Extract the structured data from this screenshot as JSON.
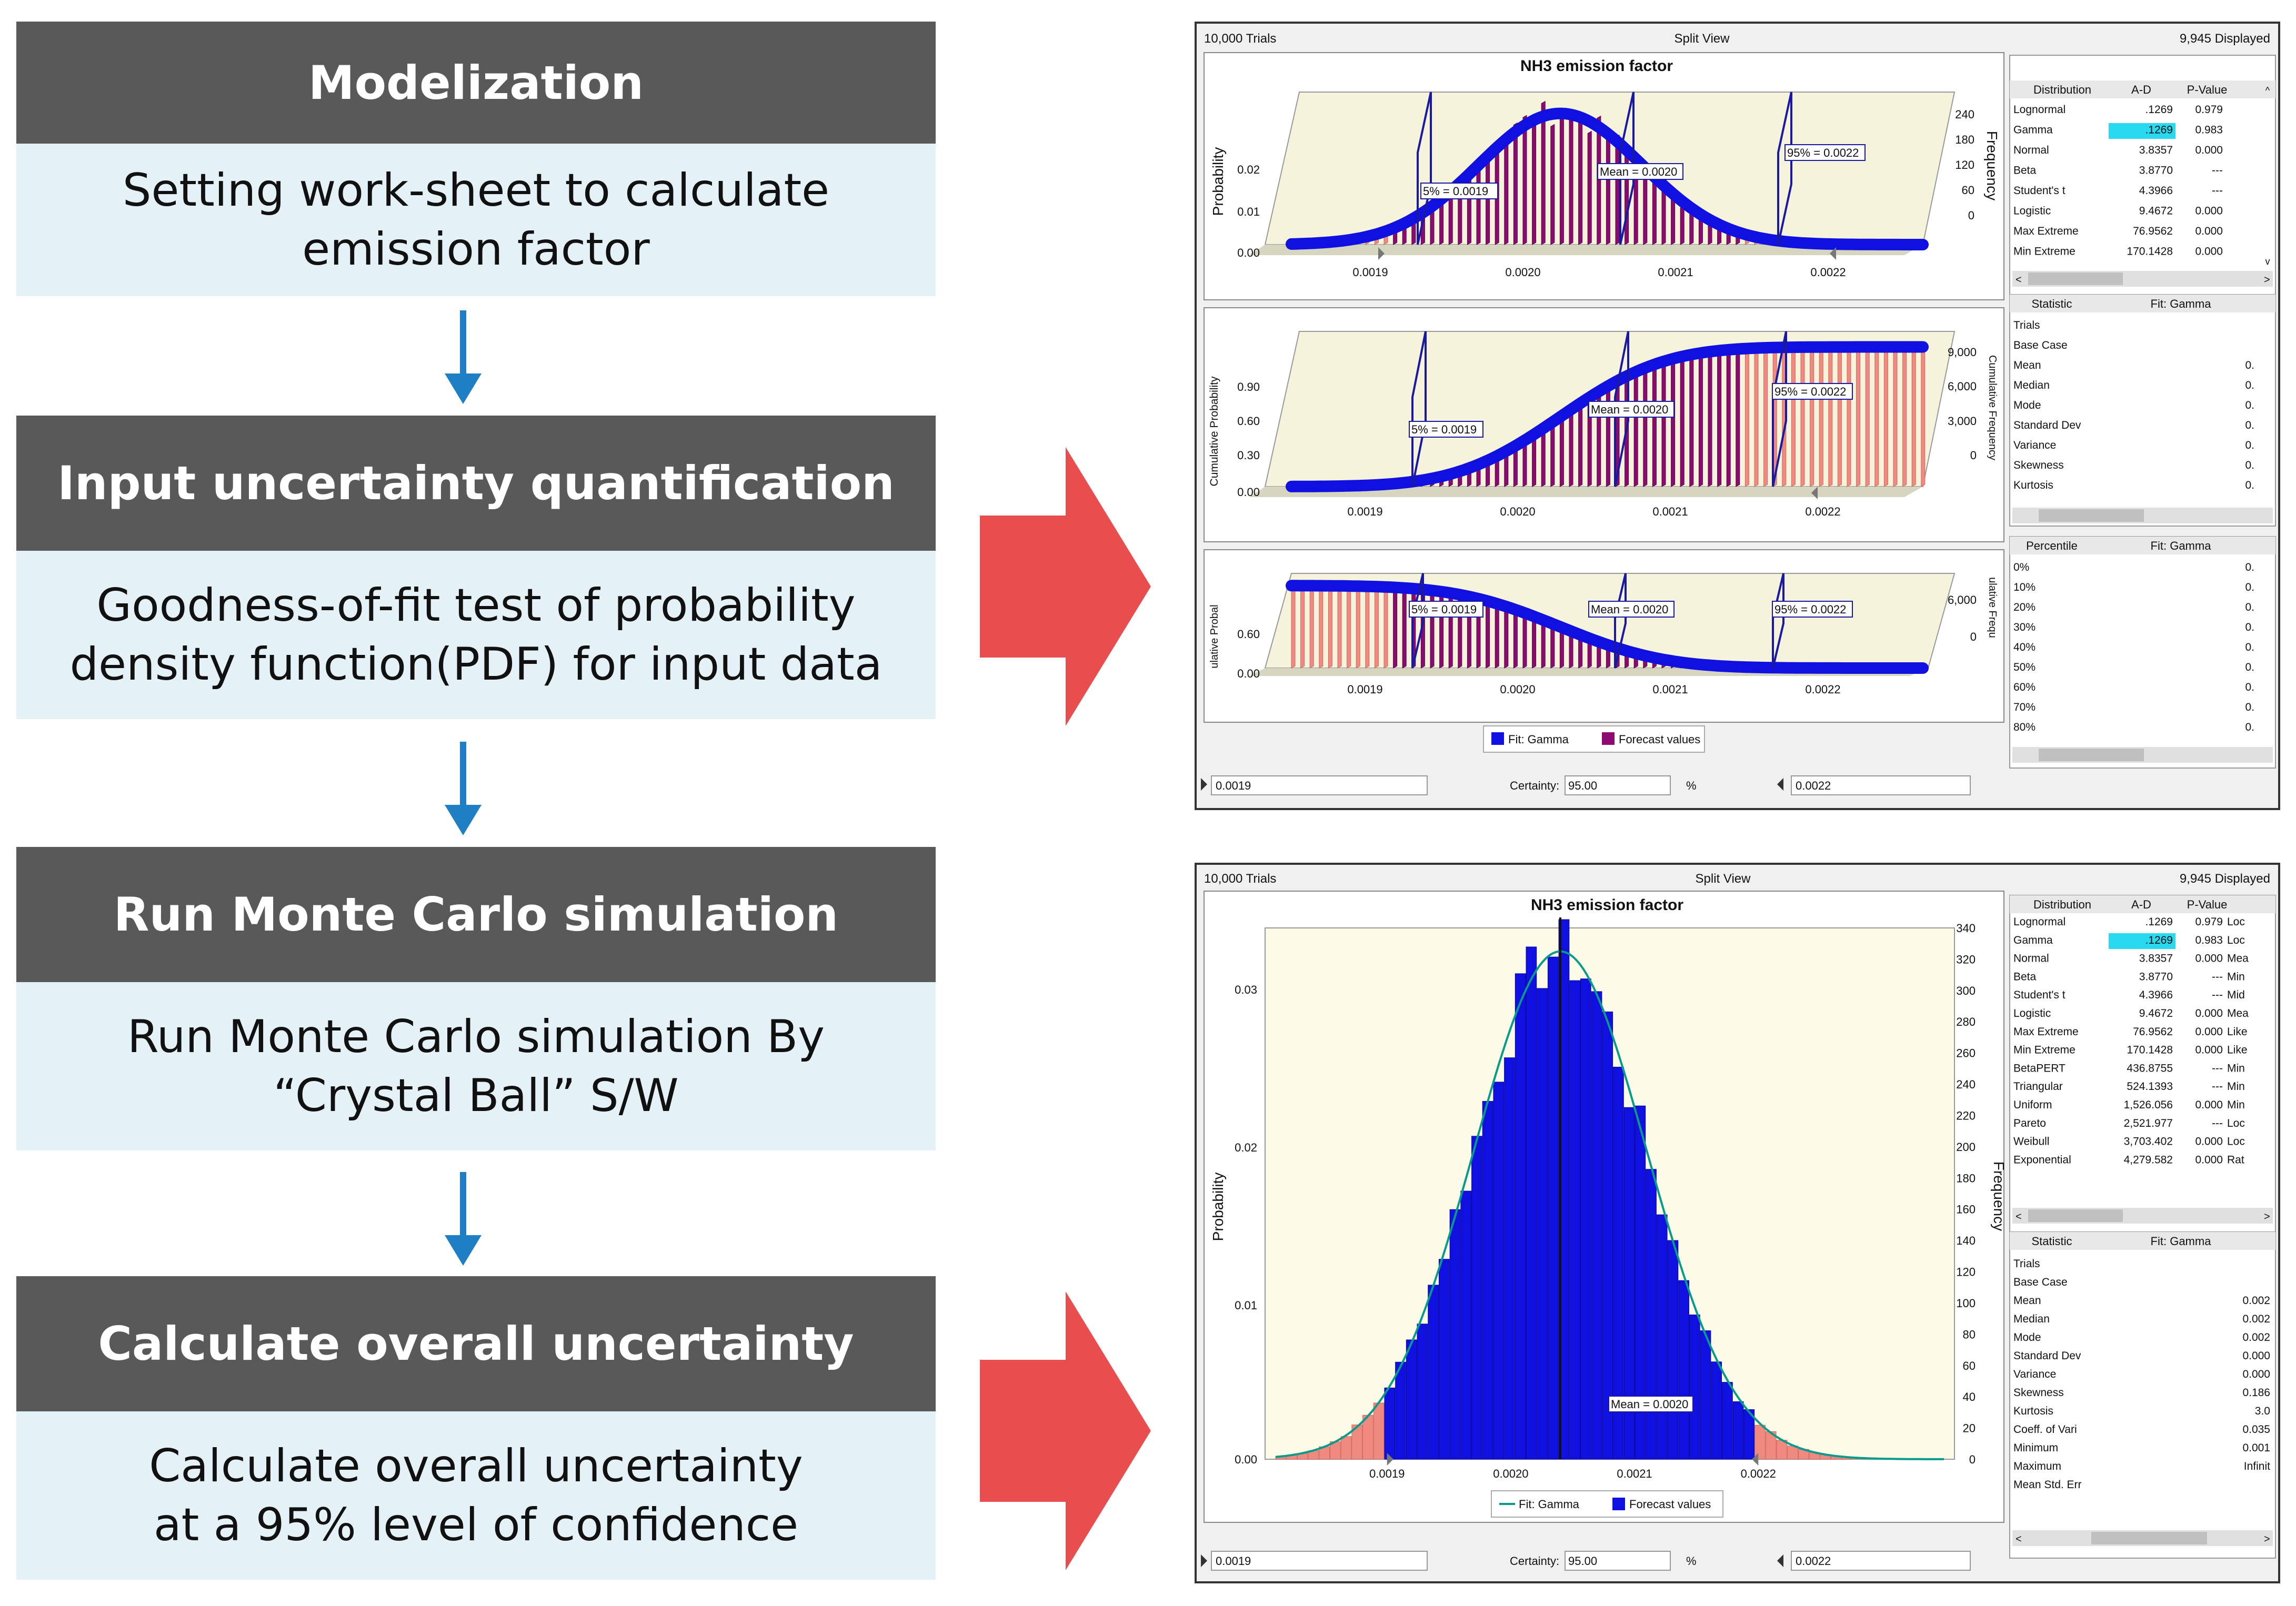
{
  "steps": [
    {
      "title": "Modelization",
      "desc_lines": [
        "Setting work-sheet to calculate",
        "emission factor"
      ]
    },
    {
      "title": "Input uncertainty quantification",
      "desc_lines": [
        "Goodness-of-fit test of probability",
        "density function(PDF) for input data"
      ]
    },
    {
      "title": "Run Monte Carlo simulation",
      "desc_lines": [
        "Run Monte Carlo simulation By",
        "“Crystal Ball” S/W"
      ]
    },
    {
      "title": "Calculate overall uncertainty",
      "desc_lines": [
        "Calculate overall uncertainty",
        "at a 95% level of confidence"
      ]
    }
  ],
  "colors": {
    "step_header": "#595959",
    "step_body": "#e4f1f6",
    "flow_arrow": "#1f7fc4",
    "big_arrow": "#e84e4e"
  },
  "windows": {
    "split_view": {
      "trials": "10,000 Trials",
      "view": "Split View",
      "displayed": "9,945 Displayed",
      "chart_title": "NH3 emission factor",
      "chart1": {
        "y_label": "Probability",
        "y_ticks": [
          "0.02",
          "0.01",
          "0.00"
        ],
        "right_label": "Frequency",
        "right_ticks": [
          "240",
          "180",
          "120",
          "60",
          "0"
        ],
        "x_ticks": [
          "0.0019",
          "0.0020",
          "0.0021",
          "0.0022"
        ],
        "markers": [
          "5% = 0.0019",
          "Mean = 0.0020",
          "95% = 0.0022"
        ]
      },
      "chart2": {
        "y_label": "Cumulative Probability",
        "y_ticks": [
          "0.90",
          "0.60",
          "0.30",
          "0.00"
        ],
        "right_label": "Cumulative Frequency",
        "right_ticks": [
          "9,000",
          "6,000",
          "3,000",
          "0"
        ],
        "x_ticks": [
          "0.0019",
          "0.0020",
          "0.0021",
          "0.0022"
        ],
        "markers": [
          "5% = 0.0019",
          "Mean = 0.0020",
          "95% = 0.0022"
        ]
      },
      "chart3": {
        "y_label": "ulative Probal",
        "y_ticks": [
          "0.60",
          "0.00"
        ],
        "right_label": "ulative Frequ",
        "right_ticks": [
          "6,000",
          "0"
        ],
        "x_ticks": [
          "0.0019",
          "0.0020",
          "0.0021",
          "0.0022"
        ],
        "markers": [
          "5% = 0.0019",
          "Mean = 0.0020",
          "95% = 0.0022"
        ]
      },
      "legend": [
        "Fit: Gamma",
        "Forecast values"
      ],
      "dist_table": {
        "headers": [
          "Distribution",
          "A-D",
          "P-Value"
        ],
        "rows": [
          [
            "Lognormal",
            ".1269",
            "0.979"
          ],
          [
            "Gamma",
            ".1269",
            "0.983"
          ],
          [
            "Normal",
            "3.8357",
            "0.000"
          ],
          [
            "Beta",
            "3.8770",
            "---"
          ],
          [
            "Student's t",
            "4.3966",
            "---"
          ],
          [
            "Logistic",
            "9.4672",
            "0.000"
          ],
          [
            "Max Extreme",
            "76.9562",
            "0.000"
          ],
          [
            "Min Extreme",
            "170.1428",
            "0.000"
          ]
        ]
      },
      "stat_table": {
        "headers": [
          "Statistic",
          "Fit: Gamma"
        ],
        "rows": [
          "Trials",
          "Base Case",
          "Mean",
          "Median",
          "Mode",
          "Standard Dev",
          "Variance",
          "Skewness",
          "Kurtosis"
        ],
        "cut": [
          "0.",
          "0.",
          "0.",
          "0.",
          "0.",
          "0.",
          "0."
        ]
      },
      "pct_table": {
        "headers": [
          "Percentile",
          "Fit: Gamma"
        ],
        "rows": [
          "0%",
          "10%",
          "20%",
          "30%",
          "40%",
          "50%",
          "60%",
          "70%",
          "80%"
        ]
      },
      "bottom": {
        "left": "0.0019",
        "certainty_label": "Certainty:",
        "certainty": "95.00",
        "pct": "%",
        "right": "0.0022"
      }
    },
    "freq_view": {
      "trials": "10,000 Trials",
      "view": "Split View",
      "displayed": "9,945 Displayed",
      "chart_title": "NH3 emission factor",
      "y_label": "Probability",
      "y_ticks": [
        "0.03",
        "0.02",
        "0.01",
        "0.00"
      ],
      "right_label": "Frequency",
      "right_ticks": [
        "340",
        "320",
        "300",
        "280",
        "260",
        "240",
        "220",
        "200",
        "180",
        "160",
        "140",
        "120",
        "100",
        "80",
        "60",
        "40",
        "20",
        "0"
      ],
      "x_ticks": [
        "0.0019",
        "0.0020",
        "0.0021",
        "0.0022"
      ],
      "mean_label": "Mean = 0.0020",
      "legend": [
        "Fit: Gamma",
        "Forecast values"
      ],
      "dist_table": {
        "headers": [
          "Distribution",
          "A-D",
          "P-Value"
        ],
        "rows": [
          [
            "Lognormal",
            ".1269",
            "0.979",
            "Loc"
          ],
          [
            "Gamma",
            ".1269",
            "0.983",
            "Loc"
          ],
          [
            "Normal",
            "3.8357",
            "0.000",
            "Mea"
          ],
          [
            "Beta",
            "3.8770",
            "---",
            "Min"
          ],
          [
            "Student's t",
            "4.3966",
            "---",
            "Mid"
          ],
          [
            "Logistic",
            "9.4672",
            "0.000",
            "Mea"
          ],
          [
            "Max Extreme",
            "76.9562",
            "0.000",
            "Like"
          ],
          [
            "Min Extreme",
            "170.1428",
            "0.000",
            "Like"
          ],
          [
            "BetaPERT",
            "436.8755",
            "---",
            "Min"
          ],
          [
            "Triangular",
            "524.1393",
            "---",
            "Min"
          ],
          [
            "Uniform",
            "1,526.056",
            "0.000",
            "Min"
          ],
          [
            "Pareto",
            "2,521.977",
            "---",
            "Loc"
          ],
          [
            "Weibull",
            "3,703.402",
            "0.000",
            "Loc"
          ],
          [
            "Exponential",
            "4,279.582",
            "0.000",
            "Rat"
          ]
        ]
      },
      "stat_table": {
        "headers": [
          "Statistic",
          "Fit: Gamma"
        ],
        "rows": [
          [
            "Trials",
            ""
          ],
          [
            "Base Case",
            ""
          ],
          [
            "Mean",
            "0.002"
          ],
          [
            "Median",
            "0.002"
          ],
          [
            "Mode",
            "0.002"
          ],
          [
            "Standard Dev",
            "0.000"
          ],
          [
            "Variance",
            "0.000"
          ],
          [
            "Skewness",
            "0.186"
          ],
          [
            "Kurtosis",
            "3.0"
          ],
          [
            "Coeff. of Vari",
            "0.035"
          ],
          [
            "Minimum",
            "0.001"
          ],
          [
            "Maximum",
            "Infinit"
          ],
          [
            "Mean Std. Err",
            ""
          ]
        ]
      },
      "bottom": {
        "left": "0.0019",
        "certainty_label": "Certainty:",
        "certainty": "95.00",
        "pct": "%",
        "right": "0.0022"
      }
    }
  },
  "chart_data": {
    "type": "bar",
    "title": "NH3 emission factor",
    "xlabel": "",
    "ylabel": "Probability",
    "y2label": "Frequency",
    "x_ticks": [
      0.0019,
      0.002,
      0.0021,
      0.0022
    ],
    "xlim": [
      0.00181,
      0.00235
    ],
    "ylim": [
      0,
      340
    ],
    "certainty_range": [
      0.0019,
      0.0022
    ],
    "certainty": 95.0,
    "mean": 0.00204,
    "fit": "Gamma",
    "legend": [
      "Fit: Gamma",
      "Forecast values"
    ],
    "bin_width": 8.8e-06
  }
}
